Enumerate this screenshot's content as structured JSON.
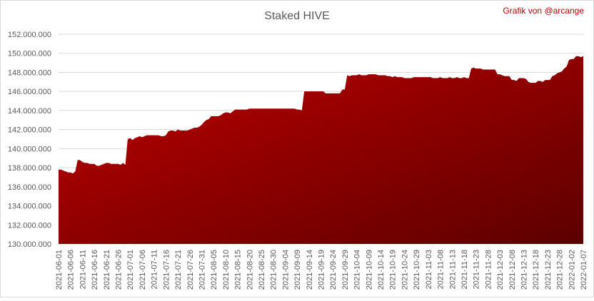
{
  "chart_data": {
    "type": "area",
    "title": "Staked HIVE",
    "annotation": "Grafik von @arcange",
    "color": "#c00000",
    "grid": true,
    "categories": [
      "2021-06-01",
      null,
      null,
      null,
      null,
      "2021-06-06",
      null,
      null,
      null,
      null,
      "2021-06-11",
      null,
      null,
      null,
      null,
      "2021-06-16",
      null,
      null,
      null,
      null,
      "2021-06-21",
      null,
      null,
      null,
      null,
      "2021-06-26",
      null,
      null,
      null,
      null,
      "2021-07-01",
      null,
      null,
      null,
      null,
      "2021-07-06",
      null,
      null,
      null,
      null,
      "2021-07-11",
      null,
      null,
      null,
      null,
      "2021-07-16",
      null,
      null,
      null,
      null,
      "2021-07-21",
      null,
      null,
      null,
      null,
      "2021-07-26",
      null,
      null,
      null,
      null,
      "2021-07-31",
      null,
      null,
      null,
      null,
      "2021-08-05",
      null,
      null,
      null,
      null,
      "2021-08-10",
      null,
      null,
      null,
      null,
      "2021-08-15",
      null,
      null,
      null,
      null,
      "2021-08-20",
      null,
      null,
      null,
      null,
      "2021-08-25",
      null,
      null,
      null,
      null,
      "2021-08-30",
      null,
      null,
      null,
      null,
      "2021-09-04",
      null,
      null,
      null,
      null,
      "2021-09-09",
      null,
      null,
      null,
      null,
      "2021-09-14",
      null,
      null,
      null,
      null,
      "2021-09-19",
      null,
      null,
      null,
      null,
      "2021-09-24",
      null,
      null,
      null,
      null,
      "2021-09-29",
      null,
      null,
      null,
      null,
      "2021-10-04",
      null,
      null,
      null,
      null,
      "2021-10-09",
      null,
      null,
      null,
      null,
      "2021-10-14",
      null,
      null,
      null,
      null,
      "2021-10-19",
      null,
      null,
      null,
      null,
      "2021-10-24",
      null,
      null,
      null,
      null,
      "2021-10-29",
      null,
      null,
      null,
      null,
      "2021-11-03",
      null,
      null,
      null,
      null,
      "2021-11-08",
      null,
      null,
      null,
      null,
      "2021-11-13",
      null,
      null,
      null,
      null,
      "2021-11-18",
      null,
      null,
      null,
      null,
      "2021-11-23",
      null,
      null,
      null,
      null,
      "2021-11-28",
      null,
      null,
      null,
      null,
      "2021-12-03",
      null,
      null,
      null,
      null,
      "2021-12-08",
      null,
      null,
      null,
      null,
      "2021-12-13",
      null,
      null,
      null,
      null,
      "2021-12-18",
      null,
      null,
      null,
      null,
      "2021-12-23",
      null,
      null,
      null,
      null,
      "2021-12-28",
      null,
      null,
      null,
      null,
      "2022-01-02",
      null,
      null,
      null,
      null,
      "2022-01-07"
    ],
    "values": [
      137800000,
      137800000,
      137700000,
      137600000,
      137500000,
      137500000,
      137400000,
      137600000,
      138800000,
      138800000,
      138600000,
      138500000,
      138500000,
      138400000,
      138400000,
      138400000,
      138200000,
      138200000,
      138300000,
      138400000,
      138500000,
      138500000,
      138400000,
      138400000,
      138400000,
      138400000,
      138300000,
      138500000,
      138300000,
      141000000,
      141100000,
      140900000,
      141100000,
      141200000,
      141300000,
      141200000,
      141300000,
      141400000,
      141400000,
      141400000,
      141400000,
      141400000,
      141400000,
      141300000,
      141300000,
      141400000,
      141800000,
      141900000,
      141900000,
      141800000,
      142000000,
      141900000,
      141900000,
      141900000,
      141900000,
      142000000,
      142100000,
      142200000,
      142200000,
      142300000,
      142500000,
      142800000,
      143000000,
      143100000,
      143400000,
      143400000,
      143400000,
      143400000,
      143500000,
      143700000,
      143800000,
      143800000,
      143700000,
      143900000,
      144100000,
      144100000,
      144100000,
      144100000,
      144100000,
      144100000,
      144200000,
      144200000,
      144200000,
      144200000,
      144200000,
      144200000,
      144200000,
      144200000,
      144200000,
      144200000,
      144200000,
      144200000,
      144200000,
      144200000,
      144200000,
      144200000,
      144200000,
      144200000,
      144200000,
      144200000,
      144100000,
      144100000,
      144000000,
      146000000,
      146000000,
      146000000,
      146000000,
      146000000,
      146000000,
      146000000,
      146000000,
      146000000,
      145800000,
      145800000,
      145800000,
      145800000,
      145800000,
      145800000,
      145800000,
      146200000,
      146200000,
      147700000,
      147600000,
      147700000,
      147700000,
      147700000,
      147800000,
      147700000,
      147700000,
      147700000,
      147800000,
      147800000,
      147800000,
      147800000,
      147700000,
      147700000,
      147700000,
      147700000,
      147600000,
      147600000,
      147500000,
      147600000,
      147500000,
      147500000,
      147500000,
      147400000,
      147400000,
      147400000,
      147400000,
      147500000,
      147500000,
      147500000,
      147500000,
      147500000,
      147500000,
      147500000,
      147500000,
      147400000,
      147400000,
      147400000,
      147500000,
      147400000,
      147400000,
      147400000,
      147500000,
      147400000,
      147400000,
      147500000,
      147400000,
      147400000,
      147500000,
      147400000,
      147400000,
      148400000,
      148500000,
      148400000,
      148400000,
      148400000,
      148300000,
      148300000,
      148300000,
      148300000,
      148300000,
      148300000,
      147800000,
      147800000,
      147700000,
      147600000,
      147600000,
      147600000,
      147200000,
      147200000,
      147100000,
      147400000,
      147400000,
      147400000,
      147300000,
      147000000,
      146900000,
      146900000,
      146900000,
      147100000,
      147100000,
      147000000,
      147200000,
      147200000,
      147200000,
      147600000,
      147700000,
      147900000,
      148000000,
      148100000,
      148400000,
      148600000,
      149300000,
      149400000,
      149400000,
      149700000,
      149700000,
      149600000,
      149700000
    ],
    "ylim": [
      130000000,
      152000000
    ],
    "yticks": [
      {
        "value": 130000000,
        "label": "130.000.000"
      },
      {
        "value": 132000000,
        "label": "132.000.000"
      },
      {
        "value": 134000000,
        "label": "134.000.000"
      },
      {
        "value": 136000000,
        "label": "136.000.000"
      },
      {
        "value": 138000000,
        "label": "138.000.000"
      },
      {
        "value": 140000000,
        "label": "140.000.000"
      },
      {
        "value": 142000000,
        "label": "142.000.000"
      },
      {
        "value": 144000000,
        "label": "144.000.000"
      },
      {
        "value": 146000000,
        "label": "146.000.000"
      },
      {
        "value": 148000000,
        "label": "148.000.000"
      },
      {
        "value": 150000000,
        "label": "150.000.000"
      },
      {
        "value": 152000000,
        "label": "152.000.000"
      }
    ]
  }
}
